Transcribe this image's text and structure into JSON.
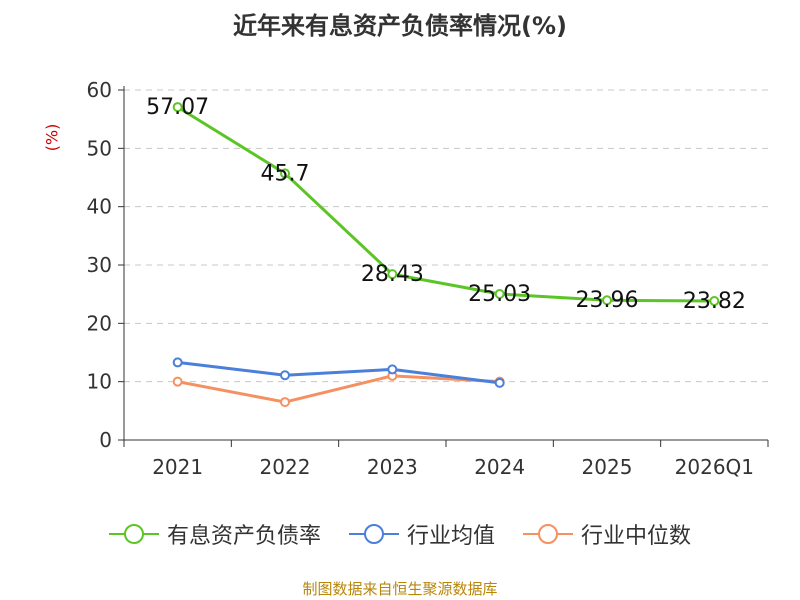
{
  "chart_data": {
    "type": "line",
    "title": "近年来有息资产负债率情况(%)",
    "ylabel": "(%)",
    "categories": [
      "2021",
      "2022",
      "2023",
      "2024",
      "2025",
      "2026Q1"
    ],
    "ylim": [
      0,
      60
    ],
    "yticks": [
      0,
      10,
      20,
      30,
      40,
      50,
      60
    ],
    "grid": true,
    "legend_position": "bottom",
    "series": [
      {
        "name": "有息资产负债率",
        "color": "#5cc526",
        "values": [
          57.07,
          45.7,
          28.43,
          25.03,
          23.96,
          23.82
        ],
        "labels": [
          "57.07",
          "45.7",
          "28.43",
          "25.03",
          "23.96",
          "23.82"
        ]
      },
      {
        "name": "行业均值",
        "color": "#4a7fdb",
        "values": [
          13.3,
          11.1,
          12.1,
          9.8,
          null,
          null
        ]
      },
      {
        "name": "行业中位数",
        "color": "#f59060",
        "values": [
          10.0,
          6.5,
          11.0,
          10.0,
          null,
          null
        ]
      }
    ]
  },
  "source": "制图数据来自恒生聚源数据库"
}
